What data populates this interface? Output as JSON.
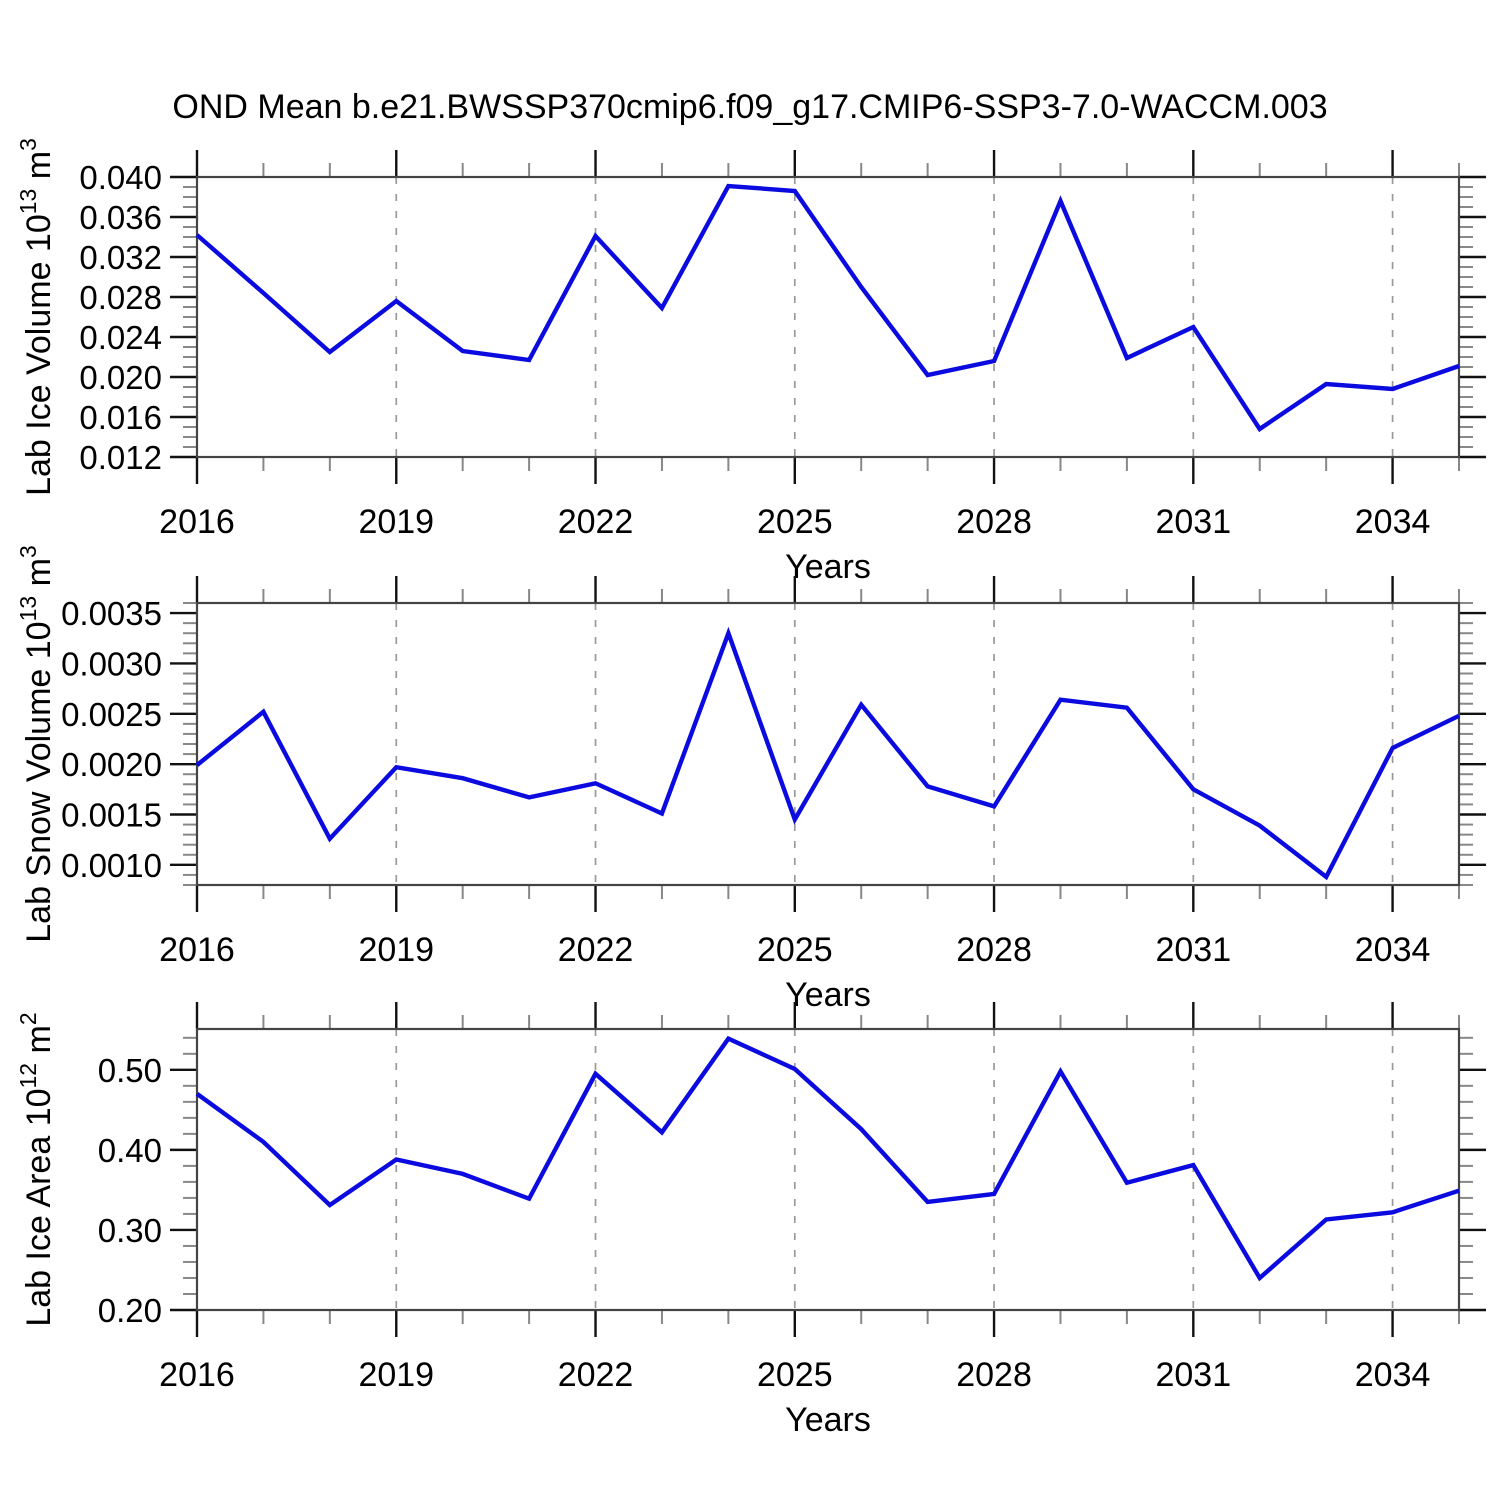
{
  "title": "OND Mean b.e21.BWSSP370cmip6.f09_g17.CMIP6-SSP3-7.0-WACCM.003",
  "xlabel": "Years",
  "line_color": "#0b0be0",
  "grid_color": "#999999",
  "chart_data": [
    {
      "type": "line",
      "id": "lab-ice-volume",
      "ylabel_text": "Lab Ice Volume 10^13 m^3",
      "ylabel_segments": [
        {
          "t": "Lab Ice Volume 10"
        },
        {
          "t": "13",
          "sup": true
        },
        {
          "t": " m"
        },
        {
          "t": "3",
          "sup": true
        }
      ],
      "xlabel": "Years",
      "x": [
        2016,
        2017,
        2018,
        2019,
        2020,
        2021,
        2022,
        2023,
        2024,
        2025,
        2026,
        2027,
        2028,
        2029,
        2030,
        2031,
        2032,
        2033,
        2034,
        2035
      ],
      "values": [
        0.0342,
        0.0284,
        0.0225,
        0.0276,
        0.0226,
        0.0217,
        0.0341,
        0.0269,
        0.0391,
        0.0386,
        0.029,
        0.0202,
        0.0216,
        0.0376,
        0.0219,
        0.025,
        0.0148,
        0.0193,
        0.0188,
        0.0211
      ],
      "ylim": [
        0.012,
        0.04
      ],
      "ytick_values": [
        0.012,
        0.016,
        0.02,
        0.024,
        0.028,
        0.032,
        0.036,
        0.04
      ],
      "ytick_labels": [
        "0.012",
        "0.016",
        "0.020",
        "0.024",
        "0.028",
        "0.032",
        "0.036",
        "0.040"
      ],
      "minor_y_step": 0.001,
      "xlim": [
        2016,
        2035
      ],
      "xtick_values": [
        2016,
        2019,
        2022,
        2025,
        2028,
        2031,
        2034
      ],
      "xtick_labels": [
        "2016",
        "2019",
        "2022",
        "2025",
        "2028",
        "2031",
        "2034"
      ],
      "minor_x_step": 1,
      "grid_x": [
        2019,
        2022,
        2025,
        2028,
        2031,
        2034
      ]
    },
    {
      "type": "line",
      "id": "lab-snow-volume",
      "ylabel_text": "Lab Snow Volume 10^13 m^3",
      "ylabel_segments": [
        {
          "t": "Lab Snow Volume 10"
        },
        {
          "t": "13",
          "sup": true
        },
        {
          "t": " m"
        },
        {
          "t": "3",
          "sup": true
        }
      ],
      "xlabel": "Years",
      "x": [
        2016,
        2017,
        2018,
        2019,
        2020,
        2021,
        2022,
        2023,
        2024,
        2025,
        2026,
        2027,
        2028,
        2029,
        2030,
        2031,
        2032,
        2033,
        2034,
        2035
      ],
      "values": [
        0.00199,
        0.00252,
        0.00126,
        0.00197,
        0.00186,
        0.00167,
        0.00181,
        0.00151,
        0.0033,
        0.00145,
        0.00259,
        0.00178,
        0.00158,
        0.00264,
        0.00256,
        0.00175,
        0.00139,
        0.00088,
        0.00216,
        0.00248
      ],
      "ylim": [
        0.0008,
        0.0036
      ],
      "ytick_values": [
        0.001,
        0.0015,
        0.002,
        0.0025,
        0.003,
        0.0035
      ],
      "ytick_labels": [
        "0.0010",
        "0.0015",
        "0.0020",
        "0.0025",
        "0.0030",
        "0.0035"
      ],
      "minor_y_step": 0.0001,
      "xlim": [
        2016,
        2035
      ],
      "xtick_values": [
        2016,
        2019,
        2022,
        2025,
        2028,
        2031,
        2034
      ],
      "xtick_labels": [
        "2016",
        "2019",
        "2022",
        "2025",
        "2028",
        "2031",
        "2034"
      ],
      "minor_x_step": 1,
      "grid_x": [
        2019,
        2022,
        2025,
        2028,
        2031,
        2034
      ]
    },
    {
      "type": "line",
      "id": "lab-ice-area",
      "ylabel_text": "Lab Ice Area 10^12 m^2",
      "ylabel_segments": [
        {
          "t": "Lab Ice Area 10"
        },
        {
          "t": "12",
          "sup": true
        },
        {
          "t": " m"
        },
        {
          "t": "2",
          "sup": true
        }
      ],
      "xlabel": "Years",
      "x": [
        2016,
        2017,
        2018,
        2019,
        2020,
        2021,
        2022,
        2023,
        2024,
        2025,
        2026,
        2027,
        2028,
        2029,
        2030,
        2031,
        2032,
        2033,
        2034,
        2035
      ],
      "values": [
        0.47,
        0.41,
        0.331,
        0.388,
        0.37,
        0.339,
        0.495,
        0.422,
        0.539,
        0.501,
        0.426,
        0.335,
        0.345,
        0.498,
        0.359,
        0.381,
        0.24,
        0.313,
        0.322,
        0.349
      ],
      "ylim": [
        0.2,
        0.551
      ],
      "ytick_values": [
        0.2,
        0.3,
        0.4,
        0.5
      ],
      "ytick_labels": [
        "0.20",
        "0.30",
        "0.40",
        "0.50"
      ],
      "minor_y_step": 0.02,
      "xlim": [
        2016,
        2035
      ],
      "xtick_values": [
        2016,
        2019,
        2022,
        2025,
        2028,
        2031,
        2034
      ],
      "xtick_labels": [
        "2016",
        "2019",
        "2022",
        "2025",
        "2028",
        "2031",
        "2034"
      ],
      "minor_x_step": 1,
      "grid_x": [
        2019,
        2022,
        2025,
        2028,
        2031,
        2034
      ]
    }
  ]
}
